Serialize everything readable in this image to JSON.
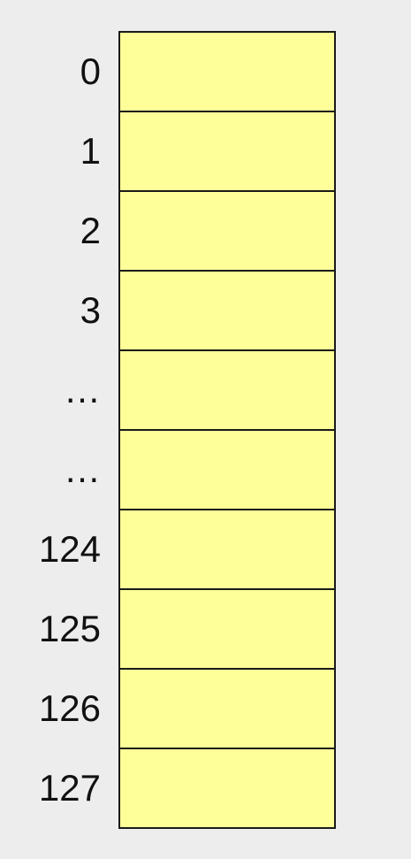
{
  "rows": [
    {
      "label": "0"
    },
    {
      "label": "1"
    },
    {
      "label": "2"
    },
    {
      "label": "3"
    },
    {
      "label": "…"
    },
    {
      "label": "…"
    },
    {
      "label": "124"
    },
    {
      "label": "125"
    },
    {
      "label": "126"
    },
    {
      "label": "127"
    }
  ],
  "colors": {
    "background": "#ededed",
    "cell_fill": "#ffff99",
    "border": "#1a1a1a"
  }
}
